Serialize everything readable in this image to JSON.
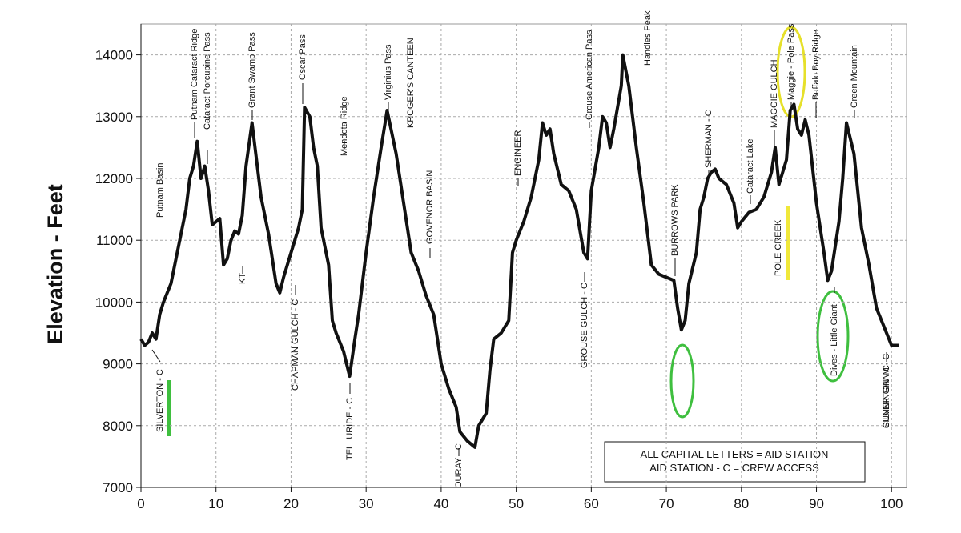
{
  "chart_data": {
    "type": "line",
    "ylabel": "Elevation - Feet",
    "x": [
      0,
      0.5,
      1,
      1.5,
      2,
      2.5,
      3,
      4,
      4.5,
      5,
      5.5,
      6,
      6.5,
      7,
      7.5,
      8,
      8.5,
      9,
      9.5,
      10,
      10.5,
      11,
      11.5,
      12,
      12.5,
      13,
      13.5,
      14,
      14.8,
      15.5,
      16,
      17,
      18,
      18.5,
      19,
      20,
      21,
      21.5,
      21.8,
      22.5,
      23,
      23.5,
      24,
      25,
      25.5,
      26,
      27,
      27.8,
      28.5,
      29,
      30,
      31,
      32,
      32.8,
      34,
      35,
      36,
      37,
      38,
      39,
      40,
      41,
      42,
      42.5,
      43.5,
      44.5,
      45,
      46,
      46.5,
      47,
      48,
      49,
      49.5,
      50,
      51,
      52,
      53,
      53.5,
      54,
      54.5,
      55,
      56,
      57,
      58,
      59,
      59.5,
      60,
      61,
      61.5,
      62,
      62.5,
      63,
      64,
      64.2,
      65,
      66,
      67,
      68,
      69,
      70,
      71,
      71.5,
      72,
      72.5,
      73,
      74,
      74.5,
      75,
      75.5,
      76,
      76.5,
      77,
      78,
      79,
      79.5,
      80,
      81,
      82,
      83,
      84,
      84.5,
      85,
      86,
      86.5,
      87,
      87.5,
      88,
      88.5,
      89,
      90,
      91,
      91.5,
      92,
      93,
      93.5,
      94,
      95,
      96,
      97,
      98,
      99,
      99.5,
      100,
      101
    ],
    "series": [
      {
        "name": "Elevation",
        "color": "#111111",
        "values": [
          9400,
          9300,
          9350,
          9500,
          9400,
          9800,
          10000,
          10300,
          10600,
          10900,
          11200,
          11500,
          12000,
          12200,
          12600,
          12000,
          12200,
          11800,
          11250,
          11300,
          11350,
          10600,
          10700,
          11000,
          11150,
          11100,
          11400,
          12200,
          12900,
          12200,
          11700,
          11100,
          10300,
          10150,
          10400,
          10800,
          11200,
          11500,
          13150,
          13000,
          12500,
          12200,
          11200,
          10600,
          9700,
          9500,
          9200,
          8800,
          9400,
          9800,
          10800,
          11700,
          12500,
          13100,
          12400,
          11600,
          10800,
          10500,
          10100,
          9800,
          9000,
          8600,
          8300,
          7900,
          7750,
          7650,
          8000,
          8200,
          8900,
          9400,
          9500,
          9700,
          10800,
          11000,
          11300,
          11700,
          12300,
          12900,
          12700,
          12800,
          12400,
          11900,
          11800,
          11500,
          10800,
          10700,
          11800,
          12500,
          13000,
          12900,
          12500,
          12800,
          13500,
          14000,
          13500,
          12500,
          11600,
          10600,
          10450,
          10400,
          10350,
          9900,
          9550,
          9700,
          10300,
          10800,
          11500,
          11700,
          12000,
          12100,
          12150,
          12000,
          11900,
          11600,
          11200,
          11300,
          11450,
          11500,
          11700,
          12100,
          12500,
          11900,
          12300,
          13100,
          13200,
          12800,
          12700,
          12950,
          12700,
          11600,
          10800,
          10350,
          10500,
          11300,
          12000,
          12900,
          12400,
          11200,
          10600,
          9900,
          9600,
          9450,
          9300,
          9300
        ]
      }
    ],
    "xlim": [
      0,
      102
    ],
    "ylim": [
      7000,
      14500
    ],
    "xticks": [
      0,
      10,
      20,
      30,
      40,
      50,
      60,
      70,
      80,
      90,
      100
    ],
    "yticks": [
      7000,
      8000,
      9000,
      10000,
      11000,
      12000,
      13000,
      14000
    ],
    "grid": true,
    "annotations": [
      "Putnam Basin",
      "Putnam Cataract Ridge",
      "Cataract Porcupine Pass",
      "Grant Swamp Pass",
      "KT",
      "CHAPMAN GULCH - C",
      "Oscar Pass",
      "TELLURIDE - C",
      "Mendota Ridge",
      "Virginius Pass",
      "KROGER'S CANTEEN",
      "GOVENOR BASIN",
      "OURAY - C",
      "ENGINEER",
      "GROUSE GULCH - C",
      "Grouse American Pass",
      "Handies Peak",
      "BURROWS PARK",
      "SHERMAN - C",
      "Cataract Lake",
      "POLE CREEK",
      "MAGGIE GULCH",
      "Maggie - Pole Pass",
      "Buffalo Boy Ridge",
      "Green Mountain",
      "Dives - Little Giant",
      "CUNNINGHAM - C",
      "SILVERTON - C",
      "SILVERTON - C"
    ],
    "legend_text": [
      "ALL CAPITAL LETTERS = AID STATION",
      "AID STATION - C = CREW ACCESS"
    ]
  }
}
